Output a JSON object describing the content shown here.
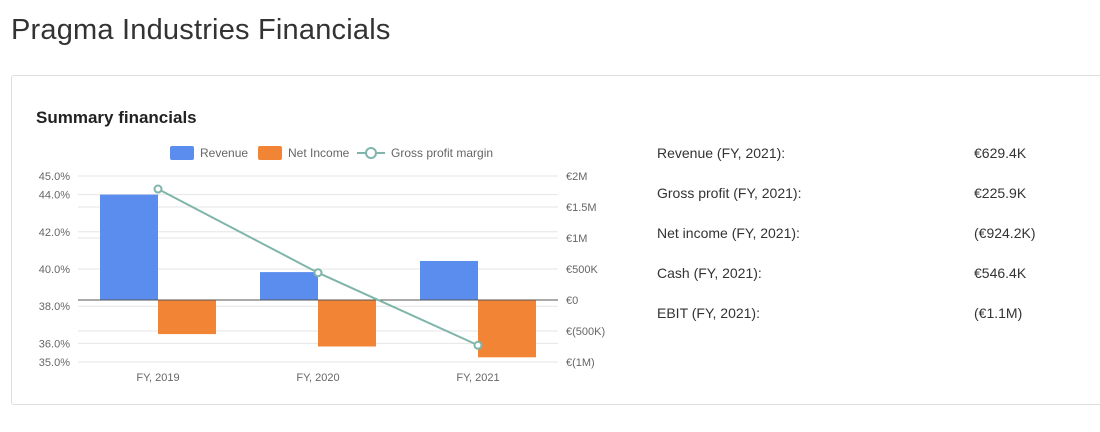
{
  "page": {
    "title": "Pragma Industries Financials"
  },
  "card": {
    "title": "Summary financials"
  },
  "colors": {
    "revenue": "#5b8def",
    "net_income": "#f28535",
    "margin": "#7fb5aa",
    "grid": "#e6e6e6",
    "baseline": "#555555"
  },
  "chart_data": {
    "type": "bar",
    "categories": [
      "FY, 2019",
      "FY, 2020",
      "FY, 2021"
    ],
    "series": [
      {
        "name": "Revenue",
        "type": "bar",
        "axis": "right",
        "values": [
          1700000,
          450000,
          629400
        ]
      },
      {
        "name": "Net Income",
        "type": "bar",
        "axis": "right",
        "values": [
          -550000,
          -750000,
          -924200
        ]
      },
      {
        "name": "Gross profit margin",
        "type": "line",
        "axis": "left",
        "values": [
          44.3,
          39.8,
          35.9
        ]
      }
    ],
    "left_axis": {
      "min": 35,
      "max": 45,
      "ticks": [
        35,
        36,
        38,
        40,
        42,
        44,
        45
      ],
      "tick_labels": [
        "35.0%",
        "36.0%",
        "38.0%",
        "40.0%",
        "42.0%",
        "44.0%",
        "45.0%"
      ]
    },
    "right_axis": {
      "min": -1000000,
      "max": 2000000,
      "ticks": [
        -1000000,
        -500000,
        0,
        500000,
        1000000,
        1500000,
        2000000
      ],
      "tick_labels": [
        "€(1M)",
        "€(500K)",
        "€0",
        "€500K",
        "€1M",
        "€1.5M",
        "€2M"
      ]
    },
    "legend": {
      "position": "top"
    },
    "grid": true
  },
  "summary": {
    "rows": [
      {
        "label": "Revenue (FY, 2021):",
        "value": "€629.4K"
      },
      {
        "label": "Gross profit (FY, 2021):",
        "value": "€225.9K"
      },
      {
        "label": "Net income (FY, 2021):",
        "value": "(€924.2K)"
      },
      {
        "label": "Cash (FY, 2021):",
        "value": "€546.4K"
      },
      {
        "label": "EBIT (FY, 2021):",
        "value": "(€1.1M)"
      }
    ]
  }
}
